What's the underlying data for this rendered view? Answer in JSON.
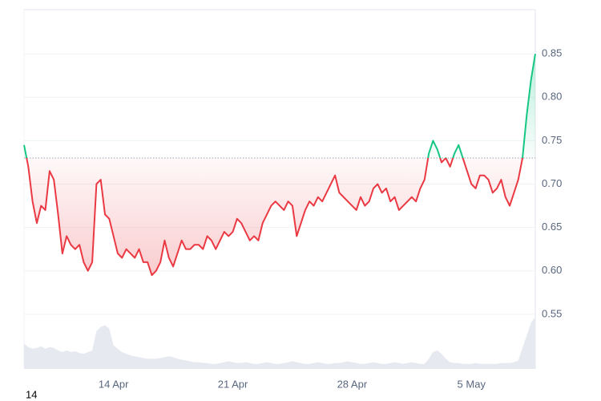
{
  "chart_data": {
    "type": "line",
    "values": [
      0.745,
      0.72,
      0.68,
      0.655,
      0.675,
      0.67,
      0.715,
      0.705,
      0.665,
      0.62,
      0.64,
      0.63,
      0.625,
      0.63,
      0.61,
      0.6,
      0.61,
      0.7,
      0.705,
      0.665,
      0.66,
      0.64,
      0.62,
      0.615,
      0.625,
      0.62,
      0.615,
      0.625,
      0.61,
      0.61,
      0.595,
      0.6,
      0.61,
      0.635,
      0.615,
      0.605,
      0.62,
      0.635,
      0.625,
      0.625,
      0.63,
      0.63,
      0.625,
      0.64,
      0.635,
      0.625,
      0.635,
      0.645,
      0.64,
      0.645,
      0.66,
      0.655,
      0.645,
      0.635,
      0.64,
      0.635,
      0.655,
      0.665,
      0.675,
      0.68,
      0.675,
      0.67,
      0.68,
      0.675,
      0.64,
      0.655,
      0.67,
      0.68,
      0.675,
      0.685,
      0.68,
      0.69,
      0.7,
      0.71,
      0.69,
      0.685,
      0.68,
      0.675,
      0.67,
      0.685,
      0.675,
      0.68,
      0.695,
      0.7,
      0.69,
      0.695,
      0.68,
      0.685,
      0.67,
      0.675,
      0.68,
      0.685,
      0.68,
      0.695,
      0.705,
      0.735,
      0.75,
      0.74,
      0.725,
      0.73,
      0.72,
      0.735,
      0.745,
      0.73,
      0.715,
      0.7,
      0.695,
      0.71,
      0.71,
      0.705,
      0.69,
      0.695,
      0.705,
      0.685,
      0.675,
      0.69,
      0.705,
      0.73,
      0.78,
      0.82,
      0.85
    ],
    "volume": [
      30,
      26,
      24,
      25,
      27,
      24,
      26,
      25,
      22,
      20,
      22,
      20,
      21,
      19,
      18,
      20,
      22,
      45,
      50,
      52,
      48,
      28,
      24,
      20,
      18,
      16,
      15,
      14,
      13,
      12,
      12,
      12,
      13,
      14,
      15,
      14,
      12,
      11,
      10,
      9,
      8,
      8,
      7,
      7,
      6,
      6,
      7,
      8,
      9,
      8,
      7,
      7,
      8,
      7,
      6,
      6,
      7,
      8,
      7,
      6,
      6,
      7,
      8,
      9,
      8,
      7,
      6,
      6,
      7,
      8,
      7,
      6,
      6,
      7,
      7,
      8,
      9,
      8,
      7,
      6,
      6,
      7,
      8,
      7,
      6,
      6,
      7,
      8,
      7,
      6,
      7,
      8,
      7,
      6,
      6,
      12,
      20,
      22,
      18,
      12,
      8,
      7,
      7,
      6,
      6,
      6,
      7,
      6,
      6,
      6,
      6,
      6,
      7,
      7,
      7,
      8,
      10,
      25,
      40,
      55,
      62
    ],
    "baseline": 0.73,
    "up_color": "#16c784",
    "down_color": "#ea3943",
    "volume_color": "#e6e9ef",
    "xlim": [
      0,
      120
    ],
    "xticks": [
      {
        "value": 21,
        "label": "14 Apr"
      },
      {
        "value": 49,
        "label": "21 Apr"
      },
      {
        "value": 77,
        "label": "28 Apr"
      },
      {
        "value": 105,
        "label": "5 May"
      }
    ],
    "ylim": [
      0.487,
      0.901
    ],
    "yticks": [
      0.55,
      {
        "value": 0.6,
        "label": "0.60"
      },
      0.65,
      {
        "value": 0.7,
        "label": "0.70"
      },
      0.75,
      {
        "value": 0.8,
        "label": "0.80"
      },
      0.85
    ],
    "grid": true,
    "footer_label": "14"
  }
}
